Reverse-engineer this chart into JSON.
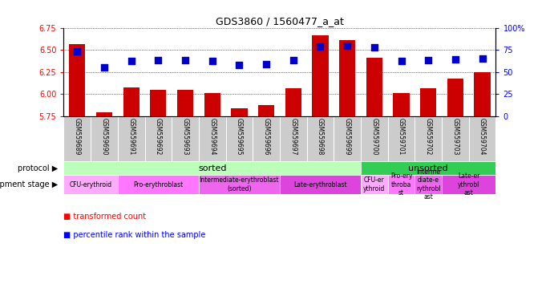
{
  "title": "GDS3860 / 1560477_a_at",
  "samples": [
    "GSM559689",
    "GSM559690",
    "GSM559691",
    "GSM559692",
    "GSM559693",
    "GSM559694",
    "GSM559695",
    "GSM559696",
    "GSM559697",
    "GSM559698",
    "GSM559699",
    "GSM559700",
    "GSM559701",
    "GSM559702",
    "GSM559703",
    "GSM559704"
  ],
  "transformed_count": [
    6.56,
    5.79,
    6.07,
    6.05,
    6.05,
    6.01,
    5.84,
    5.87,
    6.06,
    6.66,
    6.61,
    6.41,
    6.01,
    6.06,
    6.17,
    6.25
  ],
  "percentile_rank": [
    73,
    55,
    62,
    63,
    63,
    62,
    58,
    59,
    63,
    79,
    80,
    78,
    62,
    63,
    64,
    65
  ],
  "ylim": [
    5.75,
    6.75
  ],
  "y2lim": [
    0,
    100
  ],
  "yticks": [
    5.75,
    6.0,
    6.25,
    6.5,
    6.75
  ],
  "y2ticks": [
    0,
    25,
    50,
    75,
    100
  ],
  "bar_color": "#cc0000",
  "dot_color": "#0000cc",
  "protocol_row": [
    {
      "label": "sorted",
      "start": 0,
      "end": 11,
      "color": "#bbffbb"
    },
    {
      "label": "unsorted",
      "start": 11,
      "end": 16,
      "color": "#33cc55"
    }
  ],
  "dev_stage_row": [
    {
      "label": "CFU-erythroid",
      "start": 0,
      "end": 2,
      "color": "#ffaaff"
    },
    {
      "label": "Pro-erythroblast",
      "start": 2,
      "end": 5,
      "color": "#ff77ff"
    },
    {
      "label": "Intermediate-erythroblast\n(sorted)",
      "start": 5,
      "end": 8,
      "color": "#ee66ee",
      "display": "Intermediate-erythroblast\nst"
    },
    {
      "label": "Late-erythroblast",
      "start": 8,
      "end": 11,
      "color": "#dd44dd"
    },
    {
      "label": "CFU-er\nythroid",
      "start": 11,
      "end": 12,
      "color": "#ffaaff"
    },
    {
      "label": "Pro-ery\nthroba\nst",
      "start": 12,
      "end": 13,
      "color": "#ff77ff"
    },
    {
      "label": "Interme\ndiate-e\nrythrobl\nast",
      "start": 13,
      "end": 14,
      "color": "#ee66ee"
    },
    {
      "label": "Late-er\nythrobl\nast",
      "start": 14,
      "end": 16,
      "color": "#dd44dd"
    }
  ],
  "bar_width": 0.6,
  "dot_size": 35,
  "dot_marker": "s",
  "sample_area_color": "#cccccc",
  "label_protocol": "protocol",
  "label_devstage": "development stage",
  "legend_bar": "transformed count",
  "legend_dot": "percentile rank within the sample"
}
